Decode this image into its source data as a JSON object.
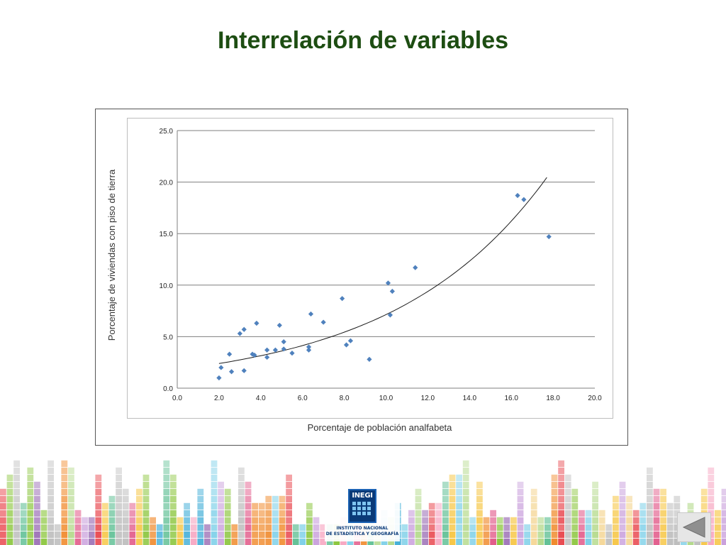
{
  "slide": {
    "title": "Interrelación de variables"
  },
  "logo": {
    "mark": "INEGI",
    "caption_line1": "INSTITUTO NACIONAL",
    "caption_line2": "DE ESTADÍSTICA Y GEOGRAFÍA"
  },
  "navigation": {
    "back_icon": "triangle-left-icon"
  },
  "chart_data": {
    "type": "scatter",
    "title": "",
    "xlabel": "Porcentaje de población analfabeta",
    "ylabel": "Porcentaje de viviendas con piso de tierra",
    "xlim": [
      0,
      20
    ],
    "ylim": [
      0,
      25
    ],
    "x_ticks": [
      "0.0",
      "2.0",
      "4.0",
      "6.0",
      "8.0",
      "10.0",
      "12.0",
      "14.0",
      "16.0",
      "18.0",
      "20.0"
    ],
    "y_ticks": [
      "0.0",
      "5.0",
      "10.0",
      "15.0",
      "20.0",
      "25.0"
    ],
    "grid": "horizontal",
    "legend": "none",
    "marker_color": "#4f81bd",
    "series": [
      {
        "points": [
          [
            2.0,
            1.0
          ],
          [
            2.1,
            2.0
          ],
          [
            2.5,
            3.3
          ],
          [
            2.6,
            1.6
          ],
          [
            3.0,
            5.3
          ],
          [
            3.2,
            5.7
          ],
          [
            3.2,
            1.7
          ],
          [
            3.6,
            3.3
          ],
          [
            3.7,
            3.2
          ],
          [
            3.8,
            6.3
          ],
          [
            4.3,
            3.0
          ],
          [
            4.3,
            3.7
          ],
          [
            4.7,
            3.7
          ],
          [
            4.9,
            6.1
          ],
          [
            5.1,
            4.5
          ],
          [
            5.1,
            3.8
          ],
          [
            5.5,
            3.4
          ],
          [
            6.3,
            4.0
          ],
          [
            6.3,
            3.7
          ],
          [
            6.4,
            7.2
          ],
          [
            7.0,
            6.4
          ],
          [
            7.9,
            8.7
          ],
          [
            8.1,
            4.2
          ],
          [
            8.3,
            4.6
          ],
          [
            9.2,
            2.8
          ],
          [
            10.1,
            10.2
          ],
          [
            10.2,
            7.1
          ],
          [
            10.3,
            9.4
          ],
          [
            11.4,
            11.7
          ],
          [
            16.3,
            18.7
          ],
          [
            16.6,
            18.3
          ],
          [
            17.8,
            14.7
          ]
        ]
      }
    ],
    "trendline": {
      "type": "exponential",
      "a": 1.822,
      "b": 0.1366,
      "x_range": [
        2.0,
        17.7
      ],
      "color": "#1a1a1a"
    }
  }
}
